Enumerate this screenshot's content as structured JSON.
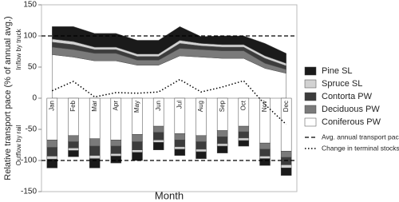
{
  "chart_data": {
    "type": "stacked-area-bar",
    "ylabel": "Relative transport pace (% of annual avg.)",
    "upper_label": "Inflow by truck",
    "lower_label": "Outflow by rail",
    "xlabel": "Month",
    "categories": [
      "Jan",
      "Feb",
      "Mar",
      "Apr",
      "May",
      "Jun",
      "Jul",
      "Aug",
      "Sep",
      "Oct",
      "Nov",
      "Dec"
    ],
    "ylim": [
      -150,
      150
    ],
    "yticks": [
      150,
      100,
      50,
      0,
      -50,
      -100,
      -150
    ],
    "series": [
      {
        "name": "Coniferous PW",
        "color": "#ffffff",
        "values": [
          70,
          66,
          60,
          60,
          53,
          53,
          68,
          66,
          64,
          64,
          48,
          40
        ],
        "rail_values": [
          -67,
          -60,
          -65,
          -67,
          -58,
          -45,
          -57,
          -60,
          -52,
          -45,
          -72,
          -85
        ]
      },
      {
        "name": "Deciduous PW",
        "color": "#7a7a7a",
        "values": [
          12,
          12,
          12,
          12,
          8,
          8,
          12,
          12,
          12,
          12,
          8,
          6
        ],
        "rail_values": [
          -12,
          -10,
          -12,
          -10,
          -12,
          -10,
          -10,
          -10,
          -10,
          -9,
          -10,
          -10
        ]
      },
      {
        "name": "Contorta PW",
        "color": "#3c3c3c",
        "values": [
          8,
          8,
          6,
          6,
          6,
          6,
          8,
          6,
          6,
          6,
          8,
          6
        ],
        "rail_values": [
          -14,
          -10,
          -15,
          -12,
          -13,
          -12,
          -11,
          -12,
          -11,
          -10,
          -11,
          -12
        ]
      },
      {
        "name": "Spruce SL",
        "color": "#d2d2d2",
        "values": [
          5,
          5,
          4,
          4,
          4,
          4,
          5,
          4,
          4,
          4,
          4,
          4
        ],
        "rail_values": [
          -5,
          -4,
          -5,
          -4,
          -4,
          -4,
          -4,
          -4,
          -4,
          -4,
          -4,
          -5
        ]
      },
      {
        "name": "Pine SL",
        "color": "#1a1a1a",
        "values": [
          20,
          24,
          22,
          22,
          22,
          22,
          22,
          11,
          14,
          14,
          20,
          16
        ],
        "rail_values": [
          -14,
          -10,
          -15,
          -11,
          -13,
          -12,
          -10,
          -11,
          -11,
          -9,
          -11,
          -12
        ]
      }
    ],
    "avg_pace": {
      "name": "Avg. annual transport pace",
      "values": [
        100,
        -100
      ]
    },
    "stocks": {
      "name": "Change in terminal stocks",
      "values": [
        12,
        27,
        2,
        9,
        8,
        10,
        30,
        10,
        18,
        28,
        -10,
        -42
      ]
    }
  }
}
